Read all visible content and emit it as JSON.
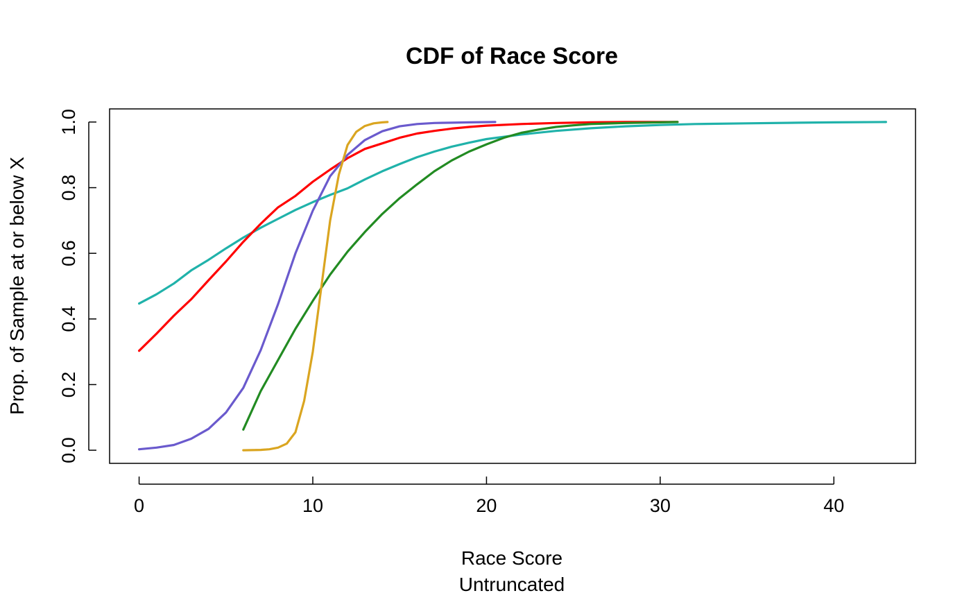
{
  "chart_data": {
    "type": "line",
    "title": "CDF of Race Score",
    "xlabel": "Race Score",
    "xlabel_sub": "Untruncated",
    "ylabel": "Prop. of Sample at or below X",
    "xlim": [
      -1.7,
      44.7
    ],
    "ylim": [
      -0.04,
      1.04
    ],
    "xticks": [
      0,
      10,
      20,
      30,
      40
    ],
    "yticks": [
      0.0,
      0.2,
      0.4,
      0.6,
      0.8,
      1.0
    ],
    "xtick_labels": [
      "0",
      "10",
      "20",
      "30",
      "40"
    ],
    "ytick_labels": [
      "0.0",
      "0.2",
      "0.4",
      "0.6",
      "0.8",
      "1.0"
    ],
    "grid": false,
    "series": [
      {
        "color": "#20B2AA",
        "points": [
          [
            0,
            0.447
          ],
          [
            1,
            0.475
          ],
          [
            2,
            0.508
          ],
          [
            3,
            0.548
          ],
          [
            4,
            0.58
          ],
          [
            5,
            0.615
          ],
          [
            6,
            0.648
          ],
          [
            7,
            0.678
          ],
          [
            8,
            0.705
          ],
          [
            9,
            0.732
          ],
          [
            10,
            0.756
          ],
          [
            11,
            0.778
          ],
          [
            12,
            0.798
          ],
          [
            13,
            0.825
          ],
          [
            14,
            0.85
          ],
          [
            15,
            0.872
          ],
          [
            16,
            0.893
          ],
          [
            17,
            0.91
          ],
          [
            18,
            0.925
          ],
          [
            19,
            0.937
          ],
          [
            20,
            0.948
          ],
          [
            22,
            0.962
          ],
          [
            24,
            0.973
          ],
          [
            26,
            0.981
          ],
          [
            28,
            0.987
          ],
          [
            30,
            0.991
          ],
          [
            32,
            0.994
          ],
          [
            35,
            0.996
          ],
          [
            38,
            0.998
          ],
          [
            40,
            0.999
          ],
          [
            43,
            1.0
          ]
        ]
      },
      {
        "color": "#FF0000",
        "points": [
          [
            0,
            0.303
          ],
          [
            1,
            0.355
          ],
          [
            2,
            0.41
          ],
          [
            3,
            0.46
          ],
          [
            4,
            0.518
          ],
          [
            5,
            0.575
          ],
          [
            6,
            0.635
          ],
          [
            7,
            0.69
          ],
          [
            8,
            0.74
          ],
          [
            9,
            0.775
          ],
          [
            10,
            0.818
          ],
          [
            11,
            0.855
          ],
          [
            12,
            0.89
          ],
          [
            13,
            0.918
          ],
          [
            14,
            0.935
          ],
          [
            15,
            0.952
          ],
          [
            16,
            0.965
          ],
          [
            17,
            0.973
          ],
          [
            18,
            0.98
          ],
          [
            19,
            0.985
          ],
          [
            20,
            0.989
          ],
          [
            22,
            0.994
          ],
          [
            24,
            0.997
          ],
          [
            26,
            0.999
          ],
          [
            28,
            1.0
          ],
          [
            31,
            1.0
          ]
        ]
      },
      {
        "color": "#6A5ACD",
        "points": [
          [
            0,
            0.003
          ],
          [
            1,
            0.008
          ],
          [
            2,
            0.016
          ],
          [
            3,
            0.035
          ],
          [
            4,
            0.065
          ],
          [
            5,
            0.115
          ],
          [
            6,
            0.19
          ],
          [
            7,
            0.305
          ],
          [
            8,
            0.445
          ],
          [
            9,
            0.6
          ],
          [
            10,
            0.73
          ],
          [
            11,
            0.835
          ],
          [
            12,
            0.9
          ],
          [
            13,
            0.945
          ],
          [
            14,
            0.972
          ],
          [
            15,
            0.987
          ],
          [
            16,
            0.994
          ],
          [
            17,
            0.997
          ],
          [
            18,
            0.998
          ],
          [
            19,
            0.999
          ],
          [
            20.5,
            1.0
          ]
        ]
      },
      {
        "color": "#228B22",
        "points": [
          [
            6,
            0.063
          ],
          [
            7,
            0.18
          ],
          [
            8,
            0.275
          ],
          [
            9,
            0.37
          ],
          [
            10,
            0.455
          ],
          [
            11,
            0.535
          ],
          [
            12,
            0.605
          ],
          [
            13,
            0.665
          ],
          [
            14,
            0.72
          ],
          [
            15,
            0.768
          ],
          [
            16,
            0.81
          ],
          [
            17,
            0.85
          ],
          [
            18,
            0.883
          ],
          [
            19,
            0.91
          ],
          [
            20,
            0.932
          ],
          [
            21,
            0.952
          ],
          [
            22,
            0.967
          ],
          [
            23,
            0.977
          ],
          [
            24,
            0.985
          ],
          [
            25,
            0.99
          ],
          [
            26,
            0.994
          ],
          [
            28,
            0.997
          ],
          [
            30,
            0.999
          ],
          [
            31,
            1.0
          ]
        ]
      },
      {
        "color": "#DAA520",
        "points": [
          [
            6,
            0.0
          ],
          [
            7,
            0.001
          ],
          [
            7.5,
            0.003
          ],
          [
            8,
            0.008
          ],
          [
            8.5,
            0.02
          ],
          [
            9,
            0.055
          ],
          [
            9.5,
            0.15
          ],
          [
            10,
            0.3
          ],
          [
            10.5,
            0.5
          ],
          [
            11,
            0.7
          ],
          [
            11.5,
            0.84
          ],
          [
            12,
            0.93
          ],
          [
            12.5,
            0.97
          ],
          [
            13,
            0.988
          ],
          [
            13.5,
            0.996
          ],
          [
            14,
            0.999
          ],
          [
            14.3,
            1.0
          ]
        ]
      }
    ]
  }
}
